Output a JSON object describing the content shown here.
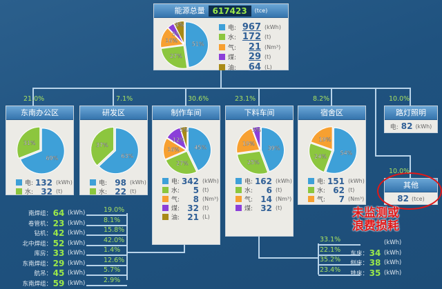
{
  "colors": {
    "elec": "#3ea0d8",
    "water": "#8cc63e",
    "gas": "#f7a031",
    "coal": "#8b3fd9",
    "oil": "#a88a16",
    "annotation": "#e01818"
  },
  "total": {
    "label": "能源总量",
    "value": "617423",
    "unit": "(tce)",
    "pie": [
      51,
      27,
      16,
      5,
      8
    ],
    "legend": [
      {
        "label": "电:",
        "value": "967",
        "unit": "(kWh)"
      },
      {
        "label": "水:",
        "value": "172",
        "unit": "(t)"
      },
      {
        "label": "气:",
        "value": "21",
        "unit": "(Nm³)"
      },
      {
        "label": "煤:",
        "value": "29",
        "unit": "(t)"
      },
      {
        "label": "油:",
        "value": "64",
        "unit": "(L)"
      }
    ]
  },
  "areas": [
    {
      "name": "东南办公区",
      "share": "21.0%",
      "pie": [
        69,
        31
      ],
      "legend": [
        {
          "label": "电:",
          "value": "132",
          "unit": "(kWh)"
        },
        {
          "label": "水:",
          "value": "32",
          "unit": "(t)"
        }
      ]
    },
    {
      "name": "研发区",
      "share": "7.1%",
      "pie": [
        63,
        37
      ],
      "legend": [
        {
          "label": "电:",
          "value": "98",
          "unit": "(kWh)"
        },
        {
          "label": "水:",
          "value": "22",
          "unit": "(t)"
        }
      ]
    },
    {
      "name": "制作车间",
      "share": "30.6%",
      "pie": [
        45,
        27,
        16,
        12,
        5
      ],
      "legend": [
        {
          "label": "电:",
          "value": "342",
          "unit": "(kWh)"
        },
        {
          "label": "水:",
          "value": "5",
          "unit": "(t)"
        },
        {
          "label": "气:",
          "value": "8",
          "unit": "(Nm³)"
        },
        {
          "label": "煤:",
          "value": "32",
          "unit": "(t)"
        },
        {
          "label": "油:",
          "value": "21",
          "unit": "(L)"
        }
      ]
    },
    {
      "name": "下料车间",
      "share": "23.1%",
      "pie": [
        39,
        25,
        19,
        5
      ],
      "legend": [
        {
          "label": "电:",
          "value": "162",
          "unit": "(kWh)"
        },
        {
          "label": "水:",
          "value": "6",
          "unit": "(t)"
        },
        {
          "label": "气:",
          "value": "14",
          "unit": "(Nm³)"
        },
        {
          "label": "煤:",
          "value": "32",
          "unit": "(t)"
        }
      ]
    },
    {
      "name": "宿舍区",
      "share": "8.2%",
      "pie": [
        54,
        24,
        19
      ],
      "legend": [
        {
          "label": "电:",
          "value": "151",
          "unit": "(kWh)"
        },
        {
          "label": "水:",
          "value": "62",
          "unit": "(t)"
        },
        {
          "label": "气:",
          "value": "7",
          "unit": "(Nm³)"
        }
      ]
    }
  ],
  "lighting": {
    "name": "路灯照明",
    "share": "10.0%",
    "label": "电:",
    "value": "82",
    "unit": "(kWh)"
  },
  "other": {
    "name": "其他",
    "share": "10.0%",
    "value": "82",
    "unit": "(tce)"
  },
  "annotation": [
    "未监测或",
    "浪费损耗"
  ],
  "workshop_items": [
    {
      "label": "南焊组：",
      "value": "64",
      "unit": "(kWh)",
      "share": "19.0%"
    },
    {
      "label": "卷管机：",
      "value": "23",
      "unit": "(kWh)",
      "share": "8.1%"
    },
    {
      "label": "钻机：",
      "value": "42",
      "unit": "(kWh)",
      "share": "15.8%"
    },
    {
      "label": "北中焊组：",
      "value": "52",
      "unit": "(kWh)",
      "share": "42.0%"
    },
    {
      "label": "库房：",
      "value": "33",
      "unit": "(kWh)",
      "share": "1.4%"
    },
    {
      "label": "东南焊组：",
      "value": "29",
      "unit": "(kWh)",
      "share": "12.6%"
    },
    {
      "label": "航吊：",
      "value": "45",
      "unit": "(kWh)",
      "share": "5.7%"
    },
    {
      "label": "东南焊组：",
      "value": "59",
      "unit": "(kWh)",
      "share": "2.9%"
    }
  ],
  "cutting_items": [
    {
      "label": "",
      "value": "",
      "unit": "(kWh)",
      "share": "33.1%"
    },
    {
      "label": "车床：",
      "value": "34",
      "unit": "(kWh)",
      "share": "22.1%"
    },
    {
      "label": "刨床：",
      "value": "38",
      "unit": "(kWh)",
      "share": "35.2%"
    },
    {
      "label": "铣床：",
      "value": "35",
      "unit": "(kWh)",
      "share": "23.4%"
    }
  ]
}
